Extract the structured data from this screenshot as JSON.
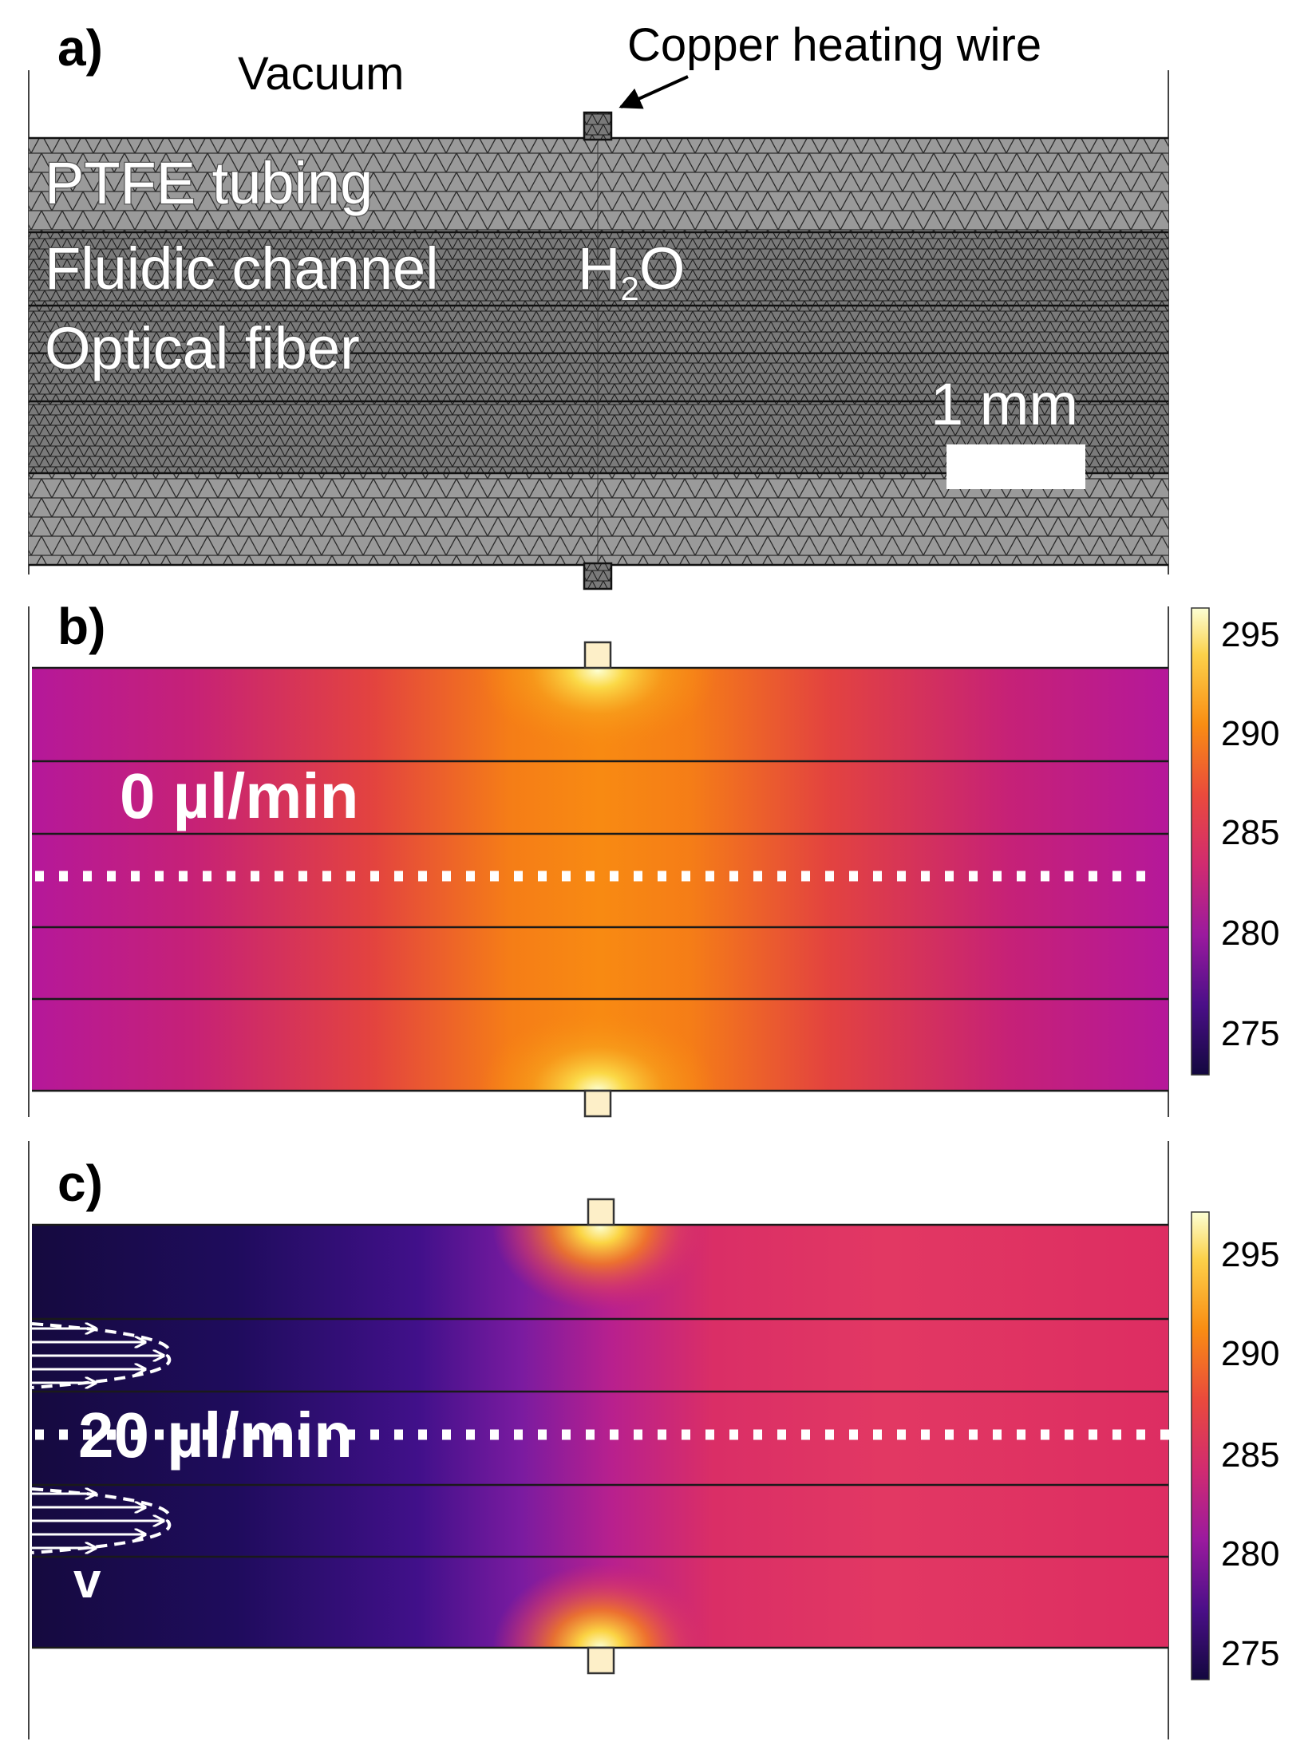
{
  "panels": {
    "a": {
      "letter": "a)",
      "vacuum_label": "Vacuum",
      "wire_label": "Copper heating wire",
      "layers": {
        "ptfe": "PTFE tubing",
        "channel": "Fluidic channel",
        "fluid_main": "H",
        "fluid_sub": "2",
        "fluid_tail": "O",
        "fiber": "Optical fiber"
      },
      "scale_bar_label": "1 mm"
    },
    "b": {
      "letter": "b)",
      "flow_label": "0 µl/min"
    },
    "c": {
      "letter": "c)",
      "flow_label": "20 µl/min",
      "velocity_label": "v"
    }
  },
  "colorbar": {
    "ticks": [
      "295",
      "290",
      "285",
      "280",
      "275"
    ],
    "stops": [
      "#fcffd4",
      "#fcd14a",
      "#f98d13",
      "#ea4a3c",
      "#d12b70",
      "#9b1a9e",
      "#4b0f88",
      "#13083f"
    ]
  },
  "colors": {
    "vacuum": "#ffffff",
    "wire": "#fdefc8",
    "mesh_fill": "#8d8d8d",
    "boundary": "#111111"
  }
}
